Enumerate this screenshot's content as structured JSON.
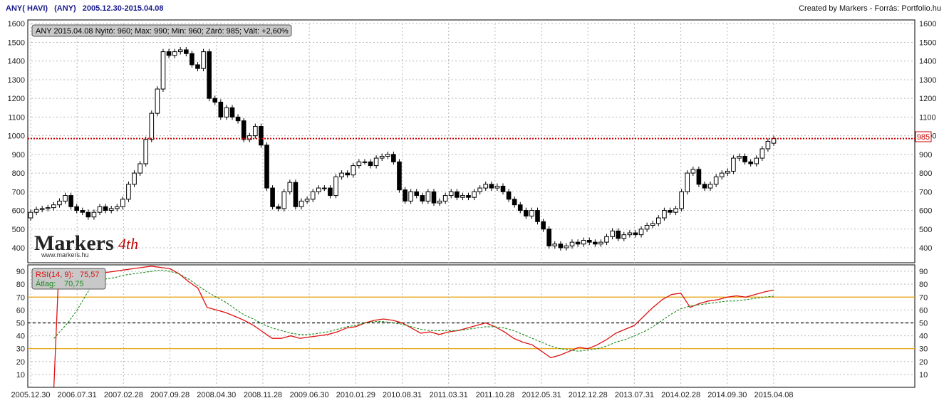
{
  "header": {
    "instrument": "ANY( HAVI)",
    "code": "(ANY)",
    "range": "2005.12.30-2015.04.08",
    "credit": "Created by Markers - Forrás: Portfolio.hu"
  },
  "info_box": "ANY 2015.04.08 Nyitó: 960; Max: 990; Min: 960; Záró: 985; Vált: +2,60%",
  "current_price_label": "985",
  "logo": {
    "text": "Markers",
    "url": "www.markers.hu",
    "script": "4th"
  },
  "colors": {
    "up_candle": "#ffffff",
    "down_candle": "#000000",
    "rsi": "#e01010",
    "rsi_avg": "#1a8a1a",
    "level_line": "#e8a000",
    "price_line": "#cc0000",
    "grid": "#b8b8b8"
  },
  "chart_data": [
    {
      "type": "candlestick",
      "title": "ANY( HAVI) (ANY) 2005.12.30-2015.04.08",
      "ylim": [
        320,
        1620
      ],
      "y_ticks": [
        400,
        500,
        600,
        700,
        800,
        900,
        1000,
        1100,
        1200,
        1300,
        1400,
        1500,
        1600
      ],
      "grid": true,
      "current_price": 985,
      "closes": [
        590,
        605,
        610,
        615,
        630,
        650,
        680,
        620,
        600,
        590,
        565,
        590,
        620,
        600,
        610,
        620,
        660,
        740,
        800,
        850,
        980,
        1120,
        1250,
        1450,
        1430,
        1450,
        1460,
        1440,
        1380,
        1360,
        1450,
        1200,
        1180,
        1100,
        1150,
        1100,
        1080,
        980,
        1000,
        1050,
        950,
        720,
        620,
        610,
        700,
        750,
        620,
        650,
        660,
        700,
        720,
        720,
        680,
        780,
        800,
        790,
        840,
        860,
        860,
        840,
        880,
        890,
        900,
        860,
        710,
        650,
        700,
        680,
        650,
        700,
        640,
        650,
        680,
        700,
        670,
        680,
        670,
        700,
        720,
        740,
        720,
        730,
        700,
        660,
        630,
        600,
        570,
        600,
        540,
        500,
        410,
        420,
        400,
        410,
        430,
        420,
        440,
        430,
        420,
        430,
        460,
        490,
        450,
        470,
        480,
        470,
        500,
        520,
        530,
        560,
        600,
        590,
        610,
        700,
        800,
        820,
        740,
        720,
        740,
        780,
        800,
        810,
        880,
        890,
        860,
        850,
        880,
        930,
        970,
        985
      ],
      "opens": [
        560,
        590,
        605,
        610,
        615,
        630,
        650,
        680,
        620,
        600,
        590,
        565,
        590,
        620,
        600,
        610,
        620,
        660,
        740,
        800,
        850,
        980,
        1120,
        1250,
        1450,
        1430,
        1450,
        1460,
        1440,
        1380,
        1360,
        1450,
        1200,
        1180,
        1100,
        1150,
        1100,
        1080,
        980,
        1000,
        1050,
        950,
        720,
        620,
        610,
        700,
        750,
        620,
        650,
        660,
        700,
        720,
        720,
        680,
        780,
        800,
        790,
        840,
        860,
        860,
        840,
        880,
        890,
        900,
        860,
        710,
        650,
        700,
        680,
        650,
        700,
        640,
        650,
        680,
        700,
        670,
        680,
        670,
        700,
        720,
        740,
        720,
        730,
        700,
        660,
        630,
        600,
        570,
        600,
        540,
        500,
        410,
        420,
        400,
        410,
        430,
        420,
        440,
        430,
        420,
        430,
        460,
        490,
        450,
        470,
        480,
        470,
        500,
        520,
        530,
        560,
        600,
        590,
        610,
        700,
        800,
        820,
        740,
        720,
        740,
        780,
        800,
        810,
        880,
        890,
        860,
        850,
        880,
        930,
        960
      ]
    },
    {
      "type": "line",
      "ylim": [
        0,
        95
      ],
      "y_ticks": [
        10,
        20,
        30,
        40,
        50,
        60,
        70,
        80,
        90
      ],
      "reference_lines": [
        {
          "value": 70,
          "style": "solid"
        },
        {
          "value": 50,
          "style": "dashed"
        },
        {
          "value": 30,
          "style": "solid"
        }
      ],
      "legend": [
        {
          "label": "RSI(14, 9):",
          "value": "75,57"
        },
        {
          "label": "Átlag:",
          "value": "70,75"
        }
      ],
      "series": [
        {
          "name": "RSI(14, 9)",
          "points": [
            [
              5,
              0
            ],
            [
              6,
              85
            ],
            [
              7,
              84
            ],
            [
              8,
              85
            ],
            [
              10,
              86
            ],
            [
              12,
              87
            ],
            [
              14,
              88
            ],
            [
              16,
              89
            ],
            [
              18,
              90
            ],
            [
              20,
              91
            ],
            [
              22,
              92
            ],
            [
              24,
              93
            ],
            [
              26,
              94
            ],
            [
              28,
              93
            ],
            [
              30,
              92
            ],
            [
              32,
              88
            ],
            [
              34,
              82
            ],
            [
              36,
              77
            ],
            [
              38,
              62
            ],
            [
              40,
              60
            ],
            [
              42,
              58
            ],
            [
              44,
              55
            ],
            [
              46,
              52
            ],
            [
              48,
              48
            ],
            [
              50,
              43
            ],
            [
              52,
              38
            ],
            [
              54,
              38
            ],
            [
              56,
              40
            ],
            [
              58,
              38
            ],
            [
              60,
              39
            ],
            [
              62,
              40
            ],
            [
              64,
              41
            ],
            [
              66,
              43
            ],
            [
              68,
              46
            ],
            [
              70,
              47
            ],
            [
              72,
              50
            ],
            [
              74,
              52
            ],
            [
              76,
              53
            ],
            [
              78,
              52
            ],
            [
              80,
              50
            ],
            [
              82,
              46
            ],
            [
              84,
              42
            ],
            [
              86,
              43
            ],
            [
              88,
              41
            ],
            [
              90,
              43
            ],
            [
              92,
              44
            ],
            [
              94,
              46
            ],
            [
              96,
              48
            ],
            [
              98,
              50
            ],
            [
              100,
              47
            ],
            [
              102,
              43
            ],
            [
              104,
              38
            ],
            [
              106,
              35
            ],
            [
              108,
              33
            ],
            [
              110,
              28
            ],
            [
              112,
              23
            ],
            [
              114,
              25
            ],
            [
              116,
              28
            ],
            [
              118,
              31
            ],
            [
              120,
              30
            ],
            [
              122,
              33
            ],
            [
              124,
              37
            ],
            [
              126,
              42
            ],
            [
              128,
              45
            ],
            [
              130,
              48
            ],
            [
              132,
              55
            ],
            [
              134,
              62
            ],
            [
              136,
              68
            ],
            [
              138,
              72
            ],
            [
              140,
              73
            ],
            [
              142,
              62
            ],
            [
              144,
              65
            ],
            [
              146,
              67
            ],
            [
              148,
              68
            ],
            [
              150,
              70
            ],
            [
              152,
              71
            ],
            [
              154,
              70
            ],
            [
              156,
              72
            ],
            [
              158,
              74
            ],
            [
              160,
              75.57
            ]
          ]
        },
        {
          "name": "Átlag",
          "points": [
            [
              5,
              38
            ],
            [
              8,
              50
            ],
            [
              10,
              60
            ],
            [
              12,
              72
            ],
            [
              14,
              84
            ],
            [
              16,
              84
            ],
            [
              18,
              85
            ],
            [
              20,
              87
            ],
            [
              22,
              88
            ],
            [
              24,
              89
            ],
            [
              26,
              90
            ],
            [
              28,
              91
            ],
            [
              30,
              90
            ],
            [
              32,
              88
            ],
            [
              34,
              84
            ],
            [
              36,
              79
            ],
            [
              38,
              74
            ],
            [
              40,
              70
            ],
            [
              42,
              66
            ],
            [
              44,
              61
            ],
            [
              46,
              56
            ],
            [
              48,
              53
            ],
            [
              50,
              49
            ],
            [
              52,
              46
            ],
            [
              54,
              44
            ],
            [
              56,
              42
            ],
            [
              58,
              41
            ],
            [
              60,
              41
            ],
            [
              62,
              42
            ],
            [
              64,
              43
            ],
            [
              66,
              45
            ],
            [
              68,
              47
            ],
            [
              70,
              48
            ],
            [
              72,
              50
            ],
            [
              74,
              51
            ],
            [
              76,
              51
            ],
            [
              78,
              50
            ],
            [
              80,
              49
            ],
            [
              82,
              47
            ],
            [
              84,
              45
            ],
            [
              86,
              44
            ],
            [
              88,
              44
            ],
            [
              90,
              44
            ],
            [
              92,
              44
            ],
            [
              94,
              45
            ],
            [
              96,
              46
            ],
            [
              98,
              47
            ],
            [
              100,
              47
            ],
            [
              102,
              46
            ],
            [
              104,
              44
            ],
            [
              106,
              41
            ],
            [
              108,
              38
            ],
            [
              110,
              35
            ],
            [
              112,
              32
            ],
            [
              114,
              30
            ],
            [
              116,
              29
            ],
            [
              118,
              28
            ],
            [
              120,
              29
            ],
            [
              122,
              30
            ],
            [
              124,
              32
            ],
            [
              126,
              35
            ],
            [
              128,
              37
            ],
            [
              130,
              40
            ],
            [
              132,
              43
            ],
            [
              134,
              47
            ],
            [
              136,
              52
            ],
            [
              138,
              57
            ],
            [
              140,
              61
            ],
            [
              142,
              63
            ],
            [
              144,
              64
            ],
            [
              146,
              65
            ],
            [
              148,
              66
            ],
            [
              150,
              67
            ],
            [
              152,
              67
            ],
            [
              154,
              68
            ],
            [
              156,
              69
            ],
            [
              158,
              70
            ],
            [
              160,
              70.75
            ]
          ]
        }
      ]
    }
  ],
  "x_axis": {
    "ticks": [
      "2005.12.30",
      "2006.07.31",
      "2007.02.28",
      "2007.09.28",
      "2008.04.30",
      "2008.11.28",
      "2009.06.30",
      "2010.01.29",
      "2010.08.31",
      "2011.03.31",
      "2011.10.28",
      "2012.05.31",
      "2012.12.28",
      "2013.07.31",
      "2014.02.28",
      "2014.09.30",
      "2015.04.08"
    ]
  }
}
